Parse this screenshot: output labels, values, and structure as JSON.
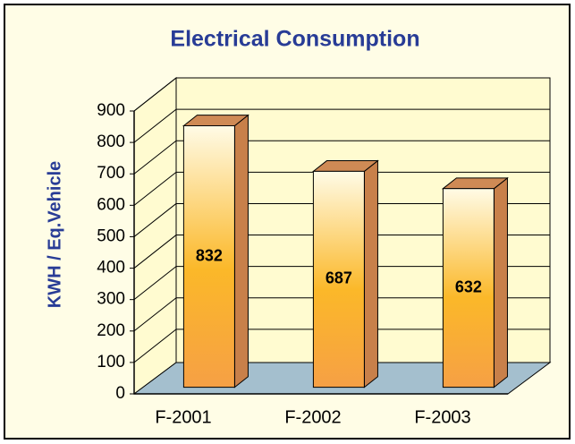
{
  "chart_data": {
    "type": "bar3d",
    "title": "Electrical Consumption",
    "y_label": "KWH / Eq.Vehicle",
    "categories": [
      "F-2001",
      "F-2002",
      "F-2003"
    ],
    "values": [
      832,
      687,
      632
    ],
    "color": "#fbb829",
    "ylim": [
      0,
      900
    ],
    "yticks": [
      0,
      100,
      200,
      300,
      400,
      500,
      600,
      700,
      800,
      900
    ],
    "grid": true
  }
}
